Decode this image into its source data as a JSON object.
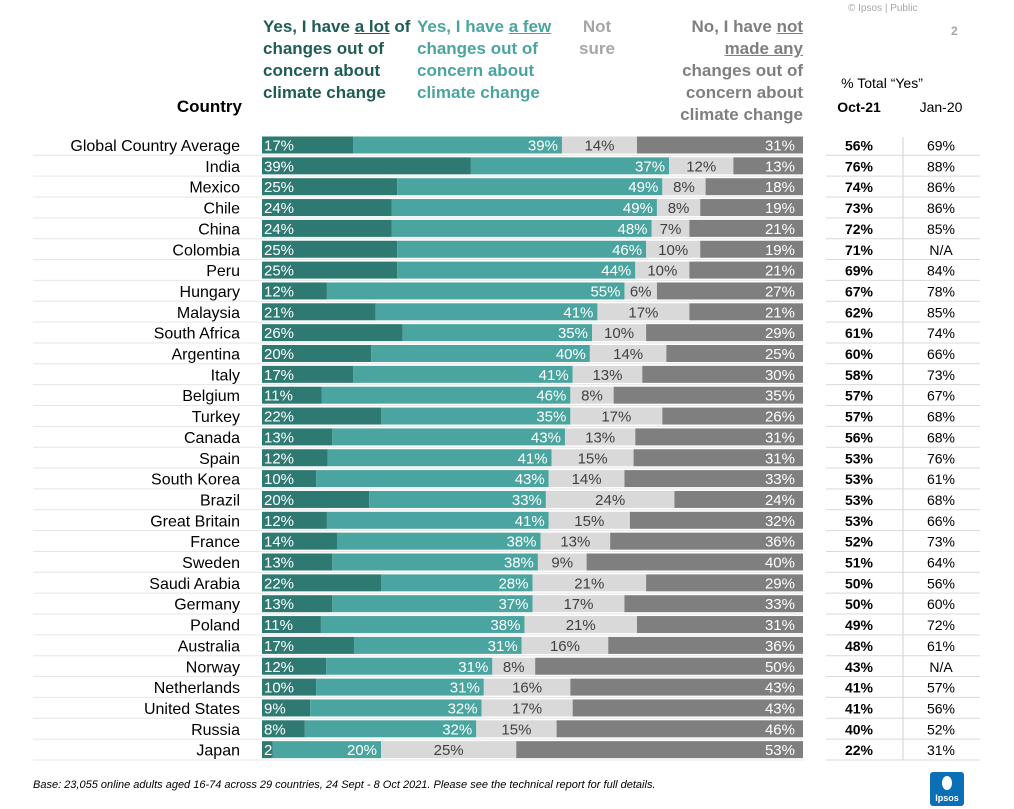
{
  "header": {
    "country_label": "Country",
    "col1_parts": [
      "Yes, I have ",
      "a lot",
      " of changes out of concern about climate change"
    ],
    "col2_parts": [
      "Yes, I have ",
      "a few",
      " changes out of concern about climate change"
    ],
    "col3": "Not sure",
    "col4_parts": [
      "No, I  have ",
      "not made any",
      " changes out of concern about climate change"
    ],
    "total_label": "% Total “Yes”",
    "period1": "Oct-21",
    "period2": "Jan-20",
    "top_note": "© Ipsos | Public",
    "page_number": "2"
  },
  "footer": {
    "base_note": "Base: 23,055 online adults aged 16-74 across 29 countries,  24 Sept - 8 Oct 2021. Please see the technical report for full details.",
    "logo_text": "Ipsos"
  },
  "colors": {
    "a_lot": "#2e7a72",
    "a_few": "#4aa49f",
    "not_sure": "#d9d9d9",
    "no": "#7f7f7f",
    "header_a_lot": "#1f5c55",
    "header_a_few": "#4aa49f",
    "header_not_sure": "#a6a6a6",
    "header_no": "#7f7f7f",
    "logo": "#0b6fb7"
  },
  "chart_data": {
    "type": "bar",
    "orientation": "horizontal",
    "stacked": true,
    "percent_scale": true,
    "categories": [
      "Global Country Average",
      "India",
      "Mexico",
      "Chile",
      "China",
      "Colombia",
      "Peru",
      "Hungary",
      "Malaysia",
      "South Africa",
      "Argentina",
      "Italy",
      "Belgium",
      "Turkey",
      "Canada",
      "Spain",
      "South Korea",
      "Brazil",
      "Great Britain",
      "France",
      "Sweden",
      "Saudi Arabia",
      "Germany",
      "Poland",
      "Australia",
      "Norway",
      "Netherlands",
      "United States",
      "Russia",
      "Japan"
    ],
    "series": [
      {
        "key": "a_lot",
        "values": [
          17,
          39,
          25,
          24,
          24,
          25,
          25,
          12,
          21,
          26,
          20,
          17,
          11,
          22,
          13,
          12,
          10,
          20,
          12,
          14,
          13,
          22,
          13,
          11,
          17,
          12,
          10,
          9,
          8,
          2
        ]
      },
      {
        "key": "a_few",
        "values": [
          39,
          37,
          49,
          49,
          48,
          46,
          44,
          55,
          41,
          35,
          40,
          41,
          46,
          35,
          43,
          41,
          43,
          33,
          41,
          38,
          38,
          28,
          37,
          38,
          31,
          31,
          31,
          32,
          32,
          20
        ]
      },
      {
        "key": "not_sure",
        "values": [
          14,
          12,
          8,
          8,
          7,
          10,
          10,
          6,
          17,
          10,
          14,
          13,
          8,
          17,
          13,
          15,
          14,
          24,
          15,
          13,
          9,
          21,
          17,
          21,
          16,
          8,
          16,
          17,
          15,
          25
        ]
      },
      {
        "key": "no",
        "values": [
          31,
          13,
          18,
          19,
          21,
          19,
          21,
          27,
          21,
          29,
          25,
          30,
          35,
          26,
          31,
          31,
          33,
          24,
          32,
          36,
          40,
          29,
          33,
          31,
          36,
          50,
          43,
          43,
          46,
          53
        ]
      }
    ],
    "total_yes_oct21": [
      "56%",
      "76%",
      "74%",
      "73%",
      "72%",
      "71%",
      "69%",
      "67%",
      "62%",
      "61%",
      "60%",
      "58%",
      "57%",
      "57%",
      "56%",
      "53%",
      "53%",
      "53%",
      "53%",
      "52%",
      "51%",
      "50%",
      "50%",
      "49%",
      "48%",
      "43%",
      "41%",
      "41%",
      "40%",
      "22%"
    ],
    "total_yes_jan20": [
      "69%",
      "88%",
      "86%",
      "86%",
      "85%",
      "N/A",
      "84%",
      "78%",
      "85%",
      "74%",
      "66%",
      "73%",
      "67%",
      "68%",
      "68%",
      "76%",
      "61%",
      "68%",
      "66%",
      "73%",
      "64%",
      "56%",
      "60%",
      "72%",
      "61%",
      "N/A",
      "57%",
      "56%",
      "52%",
      "31%"
    ]
  }
}
